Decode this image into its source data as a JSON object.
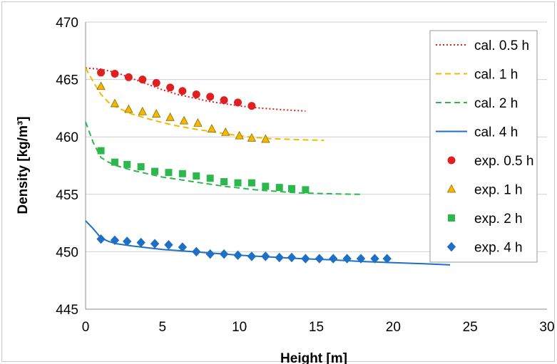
{
  "chart_data": {
    "type": "line",
    "title": "",
    "xlabel": "Height  [m]",
    "ylabel": "Density  [kg/m³]",
    "xlim": [
      0,
      30
    ],
    "ylim": [
      445,
      470
    ],
    "xticks": [
      0,
      5,
      10,
      15,
      20,
      25,
      30
    ],
    "yticks": [
      445,
      450,
      455,
      460,
      465,
      470
    ],
    "grid": "horizontal",
    "legend_position": "top-right",
    "series": [
      {
        "name": "cal. 0.5 h",
        "kind": "line",
        "style": "dotted",
        "color": "#e02020",
        "x": [
          0,
          1,
          2,
          3,
          4,
          5,
          6,
          7,
          8,
          9,
          10,
          11,
          12,
          13,
          14.3
        ],
        "y": [
          466.0,
          465.9,
          465.6,
          465.1,
          464.6,
          464.1,
          463.7,
          463.4,
          463.1,
          462.9,
          462.7,
          462.55,
          462.45,
          462.35,
          462.25
        ]
      },
      {
        "name": "cal. 1 h",
        "kind": "line",
        "style": "dashed",
        "color": "#f5b800",
        "x": [
          0,
          0.5,
          1,
          1.5,
          2,
          3,
          4,
          5,
          6,
          7,
          8,
          9,
          10,
          11,
          12,
          13,
          14,
          15.5
        ],
        "y": [
          466.0,
          464.8,
          463.7,
          463.0,
          462.6,
          462.0,
          461.6,
          461.25,
          460.95,
          460.7,
          460.5,
          460.3,
          460.1,
          459.95,
          459.85,
          459.8,
          459.75,
          459.7
        ]
      },
      {
        "name": "cal. 2 h",
        "kind": "line",
        "style": "dashed",
        "color": "#2db84d",
        "x": [
          0,
          0.5,
          1,
          1.5,
          2,
          3,
          4,
          5,
          6,
          7,
          8,
          9,
          10,
          11,
          12,
          13,
          14,
          15,
          16,
          17,
          18
        ],
        "y": [
          461.3,
          459.5,
          458.2,
          457.8,
          457.5,
          457.1,
          456.8,
          456.5,
          456.3,
          456.1,
          455.9,
          455.7,
          455.55,
          455.4,
          455.3,
          455.2,
          455.12,
          455.08,
          455.05,
          455.02,
          455.0
        ]
      },
      {
        "name": "cal. 4 h",
        "kind": "line",
        "style": "solid",
        "color": "#1f6fc5",
        "x": [
          0,
          0.5,
          1,
          1.5,
          2,
          3,
          4,
          5,
          6,
          7,
          8,
          9,
          10,
          12,
          14,
          16,
          18,
          20,
          22,
          23.7
        ],
        "y": [
          452.7,
          452.0,
          451.2,
          450.9,
          450.7,
          450.5,
          450.35,
          450.2,
          450.1,
          450.0,
          449.9,
          449.8,
          449.7,
          449.55,
          449.4,
          449.3,
          449.15,
          449.05,
          448.95,
          448.85
        ]
      },
      {
        "name": "exp. 0.5 h",
        "kind": "marker",
        "marker": "circle",
        "color": "#e02020",
        "x": [
          1.0,
          1.9,
          2.8,
          3.7,
          4.6,
          5.5,
          6.3,
          7.2,
          8.1,
          9.0,
          9.9,
          10.8
        ],
        "y": [
          465.6,
          465.5,
          465.2,
          465.0,
          464.7,
          464.3,
          464.0,
          463.7,
          463.5,
          463.2,
          463.0,
          462.7
        ]
      },
      {
        "name": "exp. 1 h",
        "kind": "marker",
        "marker": "triangle",
        "color": "#f5b800",
        "x": [
          1.0,
          1.9,
          2.8,
          3.7,
          4.6,
          5.5,
          6.4,
          7.3,
          8.2,
          9.1,
          10.0,
          10.8,
          11.7
        ],
        "y": [
          464.4,
          462.9,
          462.4,
          462.2,
          462.0,
          461.7,
          461.4,
          461.2,
          460.7,
          460.4,
          460.1,
          459.9,
          459.8
        ]
      },
      {
        "name": "exp. 2 h",
        "kind": "marker",
        "marker": "square",
        "color": "#2db84d",
        "x": [
          1.0,
          1.9,
          2.7,
          3.6,
          4.5,
          5.4,
          6.3,
          7.2,
          8.1,
          9.0,
          9.9,
          10.8,
          11.7,
          12.6,
          13.4,
          14.3
        ],
        "y": [
          458.8,
          457.8,
          457.6,
          457.4,
          457.0,
          456.9,
          456.8,
          456.6,
          456.4,
          456.1,
          456.0,
          456.0,
          455.7,
          455.6,
          455.5,
          455.4
        ]
      },
      {
        "name": "exp. 4 h",
        "kind": "marker",
        "marker": "diamond",
        "color": "#1f6fc5",
        "x": [
          1.0,
          1.9,
          2.7,
          3.6,
          4.5,
          5.4,
          6.3,
          7.2,
          8.1,
          9.0,
          9.9,
          10.8,
          11.7,
          12.6,
          13.4,
          14.3,
          15.2,
          16.1,
          17.0,
          17.9,
          18.8,
          19.6
        ],
        "y": [
          451.1,
          451.0,
          450.9,
          450.8,
          450.7,
          450.6,
          450.4,
          450.0,
          449.8,
          449.8,
          449.7,
          449.6,
          449.6,
          449.5,
          449.5,
          449.4,
          449.4,
          449.4,
          449.4,
          449.4,
          449.4,
          449.4
        ]
      }
    ]
  }
}
